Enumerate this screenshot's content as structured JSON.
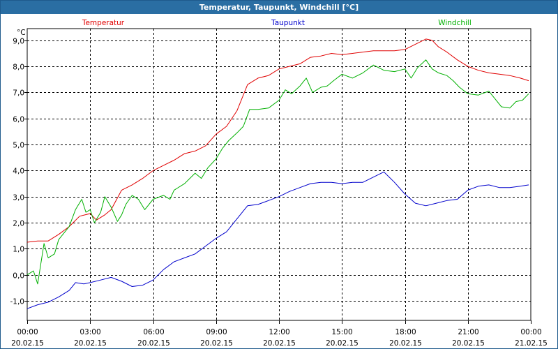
{
  "window": {
    "title": "Temperatur, Taupunkt, Windchill [°C]"
  },
  "chart_data": {
    "type": "line",
    "title": "Temperatur, Taupunkt, Windchill [°C]",
    "unit_label": "°C",
    "grid": true,
    "ylim": [
      -1.75,
      9.45
    ],
    "xlim": [
      0,
      24
    ],
    "y_ticks": [
      {
        "value": 9,
        "label": "9,0"
      },
      {
        "value": 8,
        "label": "8,0"
      },
      {
        "value": 7,
        "label": "7,0"
      },
      {
        "value": 6,
        "label": "6,0"
      },
      {
        "value": 5,
        "label": "5,0"
      },
      {
        "value": 4,
        "label": "4,0"
      },
      {
        "value": 3,
        "label": "3,0"
      },
      {
        "value": 2,
        "label": "2,0"
      },
      {
        "value": 1,
        "label": "1,0"
      },
      {
        "value": 0,
        "label": "0,0"
      },
      {
        "value": -1,
        "label": "-1,0"
      }
    ],
    "x_ticks": [
      {
        "hour": 0,
        "time": "00:00",
        "date": "20.02.15"
      },
      {
        "hour": 3,
        "time": "03:00",
        "date": "20.02.15"
      },
      {
        "hour": 6,
        "time": "06:00",
        "date": "20.02.15"
      },
      {
        "hour": 9,
        "time": "09:00",
        "date": "20.02.15"
      },
      {
        "hour": 12,
        "time": "12:00",
        "date": "20.02.15"
      },
      {
        "hour": 15,
        "time": "15:00",
        "date": "20.02.15"
      },
      {
        "hour": 18,
        "time": "18:00",
        "date": "20.02.15"
      },
      {
        "hour": 21,
        "time": "21:00",
        "date": "20.02.15"
      },
      {
        "hour": 24,
        "time": "00:00",
        "date": "21.02.15"
      }
    ],
    "series": [
      {
        "name": "Temperatur",
        "color": "#e00000",
        "points": [
          [
            0,
            1.25
          ],
          [
            0.5,
            1.3
          ],
          [
            1,
            1.3
          ],
          [
            1.5,
            1.55
          ],
          [
            2,
            1.85
          ],
          [
            2.5,
            2.25
          ],
          [
            3,
            2.35
          ],
          [
            3.3,
            2.1
          ],
          [
            3.7,
            2.3
          ],
          [
            4,
            2.5
          ],
          [
            4.5,
            3.25
          ],
          [
            5,
            3.45
          ],
          [
            5.5,
            3.7
          ],
          [
            6,
            4.0
          ],
          [
            6.5,
            4.2
          ],
          [
            7,
            4.4
          ],
          [
            7.5,
            4.65
          ],
          [
            8,
            4.75
          ],
          [
            8.5,
            4.95
          ],
          [
            9,
            5.4
          ],
          [
            9.5,
            5.7
          ],
          [
            10,
            6.3
          ],
          [
            10.5,
            7.3
          ],
          [
            11,
            7.55
          ],
          [
            11.5,
            7.65
          ],
          [
            12,
            7.9
          ],
          [
            12.5,
            8.0
          ],
          [
            13,
            8.1
          ],
          [
            13.5,
            8.35
          ],
          [
            14,
            8.4
          ],
          [
            14.5,
            8.5
          ],
          [
            15,
            8.45
          ],
          [
            15.5,
            8.5
          ],
          [
            16,
            8.55
          ],
          [
            16.5,
            8.6
          ],
          [
            17,
            8.6
          ],
          [
            17.5,
            8.6
          ],
          [
            18,
            8.65
          ],
          [
            18.5,
            8.85
          ],
          [
            19,
            9.05
          ],
          [
            19.3,
            9.0
          ],
          [
            19.6,
            8.75
          ],
          [
            20,
            8.55
          ],
          [
            20.5,
            8.25
          ],
          [
            21,
            8.0
          ],
          [
            21.5,
            7.85
          ],
          [
            22,
            7.75
          ],
          [
            22.5,
            7.7
          ],
          [
            23,
            7.65
          ],
          [
            23.5,
            7.55
          ],
          [
            23.9,
            7.45
          ]
        ]
      },
      {
        "name": "Taupunkt",
        "color": "#0000cc",
        "points": [
          [
            0,
            -1.3
          ],
          [
            0.5,
            -1.15
          ],
          [
            1,
            -1.05
          ],
          [
            1.5,
            -0.85
          ],
          [
            2,
            -0.6
          ],
          [
            2.3,
            -0.3
          ],
          [
            2.7,
            -0.35
          ],
          [
            3,
            -0.3
          ],
          [
            3.5,
            -0.2
          ],
          [
            4,
            -0.1
          ],
          [
            4.5,
            -0.25
          ],
          [
            5,
            -0.45
          ],
          [
            5.5,
            -0.4
          ],
          [
            6,
            -0.2
          ],
          [
            6.5,
            0.2
          ],
          [
            7,
            0.5
          ],
          [
            7.5,
            0.65
          ],
          [
            8,
            0.8
          ],
          [
            8.5,
            1.1
          ],
          [
            9,
            1.4
          ],
          [
            9.5,
            1.65
          ],
          [
            10,
            2.15
          ],
          [
            10.5,
            2.65
          ],
          [
            11,
            2.7
          ],
          [
            11.5,
            2.85
          ],
          [
            12,
            3.0
          ],
          [
            12.5,
            3.2
          ],
          [
            13,
            3.35
          ],
          [
            13.5,
            3.5
          ],
          [
            14,
            3.55
          ],
          [
            14.5,
            3.55
          ],
          [
            15,
            3.5
          ],
          [
            15.5,
            3.55
          ],
          [
            16,
            3.55
          ],
          [
            16.5,
            3.75
          ],
          [
            17,
            3.95
          ],
          [
            17.5,
            3.55
          ],
          [
            18,
            3.1
          ],
          [
            18.5,
            2.75
          ],
          [
            19,
            2.65
          ],
          [
            19.5,
            2.75
          ],
          [
            20,
            2.85
          ],
          [
            20.5,
            2.9
          ],
          [
            21,
            3.25
          ],
          [
            21.5,
            3.4
          ],
          [
            22,
            3.45
          ],
          [
            22.5,
            3.35
          ],
          [
            23,
            3.35
          ],
          [
            23.5,
            3.4
          ],
          [
            23.9,
            3.45
          ]
        ]
      },
      {
        "name": "Windchill",
        "color": "#00b000",
        "points": [
          [
            0,
            0.0
          ],
          [
            0.3,
            0.15
          ],
          [
            0.5,
            -0.35
          ],
          [
            0.8,
            1.2
          ],
          [
            1,
            0.65
          ],
          [
            1.3,
            0.8
          ],
          [
            1.5,
            1.35
          ],
          [
            2,
            1.85
          ],
          [
            2.3,
            2.5
          ],
          [
            2.6,
            2.9
          ],
          [
            2.8,
            2.4
          ],
          [
            3,
            2.5
          ],
          [
            3.2,
            2.0
          ],
          [
            3.5,
            2.4
          ],
          [
            3.7,
            3.0
          ],
          [
            4,
            2.6
          ],
          [
            4.3,
            2.05
          ],
          [
            4.5,
            2.3
          ],
          [
            4.7,
            2.7
          ],
          [
            5,
            3.05
          ],
          [
            5.3,
            2.9
          ],
          [
            5.6,
            2.5
          ],
          [
            6,
            2.9
          ],
          [
            6.5,
            3.05
          ],
          [
            6.8,
            2.9
          ],
          [
            7,
            3.25
          ],
          [
            7.5,
            3.5
          ],
          [
            8,
            3.9
          ],
          [
            8.3,
            3.7
          ],
          [
            8.6,
            4.1
          ],
          [
            9,
            4.45
          ],
          [
            9.3,
            4.85
          ],
          [
            9.6,
            5.15
          ],
          [
            10,
            5.45
          ],
          [
            10.3,
            5.7
          ],
          [
            10.6,
            6.35
          ],
          [
            11,
            6.35
          ],
          [
            11.5,
            6.4
          ],
          [
            12,
            6.7
          ],
          [
            12.3,
            7.1
          ],
          [
            12.6,
            6.95
          ],
          [
            13,
            7.25
          ],
          [
            13.3,
            7.55
          ],
          [
            13.6,
            7.0
          ],
          [
            14,
            7.2
          ],
          [
            14.3,
            7.25
          ],
          [
            14.6,
            7.45
          ],
          [
            15,
            7.7
          ],
          [
            15.5,
            7.55
          ],
          [
            16,
            7.75
          ],
          [
            16.5,
            8.05
          ],
          [
            17,
            7.85
          ],
          [
            17.5,
            7.8
          ],
          [
            18,
            7.9
          ],
          [
            18.3,
            7.55
          ],
          [
            18.6,
            7.95
          ],
          [
            19,
            8.25
          ],
          [
            19.3,
            7.9
          ],
          [
            19.6,
            7.75
          ],
          [
            20,
            7.65
          ],
          [
            20.3,
            7.45
          ],
          [
            20.6,
            7.2
          ],
          [
            21,
            6.95
          ],
          [
            21.5,
            6.9
          ],
          [
            22,
            7.05
          ],
          [
            22.3,
            6.75
          ],
          [
            22.6,
            6.45
          ],
          [
            23,
            6.4
          ],
          [
            23.3,
            6.65
          ],
          [
            23.6,
            6.7
          ],
          [
            23.9,
            6.95
          ]
        ]
      }
    ]
  }
}
